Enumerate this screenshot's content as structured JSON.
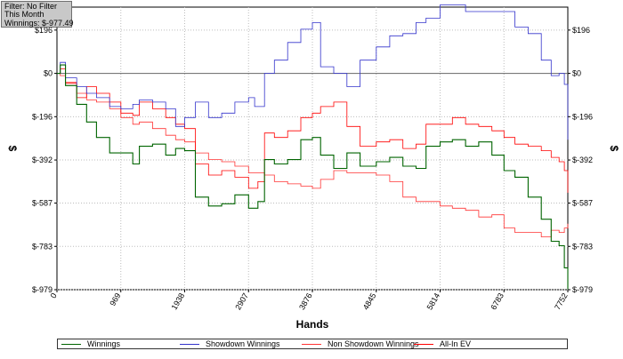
{
  "info_box": {
    "filter": "Filter: No Filter",
    "period": "This Month",
    "winnings": "Winnings: $-977.49"
  },
  "chart_data": {
    "type": "line",
    "xlabel": "Hands",
    "ylabel": "$",
    "xlim": [
      0,
      7752
    ],
    "ylim": [
      -979,
      300
    ],
    "x_ticks": [
      "0",
      "969",
      "1938",
      "2907",
      "3876",
      "4845",
      "5814",
      "6783",
      "7752"
    ],
    "y_ticks": [
      "$196",
      "$0",
      "$-196",
      "$-392",
      "$-587",
      "$-783",
      "$-979"
    ],
    "grid": true,
    "legend_position": "bottom",
    "series": [
      {
        "name": "Winnings",
        "color": "#006400",
        "points": [
          [
            0,
            0
          ],
          [
            50,
            38
          ],
          [
            130,
            -55
          ],
          [
            300,
            -140
          ],
          [
            450,
            -220
          ],
          [
            600,
            -290
          ],
          [
            800,
            -360
          ],
          [
            969,
            -360
          ],
          [
            1150,
            -410
          ],
          [
            1250,
            -330
          ],
          [
            1450,
            -320
          ],
          [
            1650,
            -370
          ],
          [
            1800,
            -340
          ],
          [
            1938,
            -350
          ],
          [
            2100,
            -560
          ],
          [
            2300,
            -600
          ],
          [
            2500,
            -590
          ],
          [
            2700,
            -550
          ],
          [
            2907,
            -610
          ],
          [
            3050,
            -580
          ],
          [
            3150,
            -390
          ],
          [
            3300,
            -410
          ],
          [
            3500,
            -390
          ],
          [
            3700,
            -300
          ],
          [
            3876,
            -290
          ],
          [
            4000,
            -370
          ],
          [
            4200,
            -430
          ],
          [
            4400,
            -360
          ],
          [
            4600,
            -420
          ],
          [
            4845,
            -400
          ],
          [
            5050,
            -380
          ],
          [
            5250,
            -420
          ],
          [
            5450,
            -430
          ],
          [
            5600,
            -330
          ],
          [
            5814,
            -310
          ],
          [
            6000,
            -300
          ],
          [
            6200,
            -330
          ],
          [
            6400,
            -310
          ],
          [
            6600,
            -370
          ],
          [
            6783,
            -440
          ],
          [
            6950,
            -470
          ],
          [
            7150,
            -560
          ],
          [
            7350,
            -660
          ],
          [
            7500,
            -760
          ],
          [
            7620,
            -780
          ],
          [
            7700,
            -880
          ],
          [
            7752,
            -977
          ]
        ]
      },
      {
        "name": "Showdown Winnings",
        "color": "#3333cc",
        "points": [
          [
            0,
            0
          ],
          [
            50,
            50
          ],
          [
            130,
            -20
          ],
          [
            300,
            -60
          ],
          [
            450,
            -90
          ],
          [
            600,
            -110
          ],
          [
            800,
            -150
          ],
          [
            969,
            -160
          ],
          [
            1150,
            -140
          ],
          [
            1250,
            -120
          ],
          [
            1450,
            -130
          ],
          [
            1650,
            -160
          ],
          [
            1800,
            -240
          ],
          [
            1938,
            -200
          ],
          [
            2100,
            -130
          ],
          [
            2300,
            -200
          ],
          [
            2500,
            -180
          ],
          [
            2700,
            -130
          ],
          [
            2907,
            -110
          ],
          [
            3000,
            -150
          ],
          [
            3150,
            0
          ],
          [
            3300,
            60
          ],
          [
            3500,
            140
          ],
          [
            3700,
            200
          ],
          [
            3876,
            230
          ],
          [
            4000,
            30
          ],
          [
            4200,
            0
          ],
          [
            4400,
            -60
          ],
          [
            4600,
            60
          ],
          [
            4845,
            120
          ],
          [
            5050,
            170
          ],
          [
            5250,
            180
          ],
          [
            5450,
            230
          ],
          [
            5600,
            250
          ],
          [
            5814,
            310
          ],
          [
            6000,
            310
          ],
          [
            6200,
            280
          ],
          [
            6400,
            280
          ],
          [
            6600,
            280
          ],
          [
            6783,
            280
          ],
          [
            6950,
            210
          ],
          [
            7150,
            180
          ],
          [
            7350,
            60
          ],
          [
            7500,
            -10
          ],
          [
            7620,
            0
          ],
          [
            7700,
            -50
          ],
          [
            7752,
            -300
          ]
        ]
      },
      {
        "name": "Non Showdown Winnings",
        "color": "#ff3333",
        "points": [
          [
            0,
            0
          ],
          [
            50,
            -10
          ],
          [
            130,
            -40
          ],
          [
            300,
            -90
          ],
          [
            450,
            -120
          ],
          [
            600,
            -130
          ],
          [
            800,
            -160
          ],
          [
            969,
            -200
          ],
          [
            1150,
            -230
          ],
          [
            1250,
            -220
          ],
          [
            1450,
            -250
          ],
          [
            1650,
            -280
          ],
          [
            1800,
            -300
          ],
          [
            1938,
            -310
          ],
          [
            2100,
            -360
          ],
          [
            2300,
            -390
          ],
          [
            2500,
            -400
          ],
          [
            2700,
            -420
          ],
          [
            2907,
            -450
          ],
          [
            3050,
            -450
          ],
          [
            3150,
            -460
          ],
          [
            3300,
            -490
          ],
          [
            3500,
            -500
          ],
          [
            3700,
            -510
          ],
          [
            3876,
            -520
          ],
          [
            4000,
            -480
          ],
          [
            4200,
            -440
          ],
          [
            4400,
            -450
          ],
          [
            4600,
            -450
          ],
          [
            4845,
            -460
          ],
          [
            5050,
            -490
          ],
          [
            5250,
            -560
          ],
          [
            5450,
            -580
          ],
          [
            5600,
            -580
          ],
          [
            5814,
            -600
          ],
          [
            6000,
            -610
          ],
          [
            6200,
            -620
          ],
          [
            6400,
            -650
          ],
          [
            6600,
            -640
          ],
          [
            6783,
            -700
          ],
          [
            6950,
            -720
          ],
          [
            7150,
            -720
          ],
          [
            7350,
            -740
          ],
          [
            7500,
            -710
          ],
          [
            7620,
            -720
          ],
          [
            7700,
            -700
          ],
          [
            7752,
            -680
          ]
        ]
      },
      {
        "name": "All-In EV",
        "color": "#ff0000",
        "points": [
          [
            0,
            0
          ],
          [
            50,
            20
          ],
          [
            130,
            -45
          ],
          [
            300,
            -110
          ],
          [
            450,
            -60
          ],
          [
            600,
            -90
          ],
          [
            800,
            -130
          ],
          [
            969,
            -180
          ],
          [
            1150,
            -190
          ],
          [
            1250,
            -130
          ],
          [
            1450,
            -160
          ],
          [
            1650,
            -200
          ],
          [
            1800,
            -230
          ],
          [
            1938,
            -250
          ],
          [
            2100,
            -410
          ],
          [
            2300,
            -460
          ],
          [
            2500,
            -440
          ],
          [
            2700,
            -470
          ],
          [
            2907,
            -520
          ],
          [
            3050,
            -490
          ],
          [
            3150,
            -270
          ],
          [
            3300,
            -290
          ],
          [
            3500,
            -260
          ],
          [
            3700,
            -200
          ],
          [
            3876,
            -180
          ],
          [
            4000,
            -150
          ],
          [
            4200,
            -130
          ],
          [
            4400,
            -240
          ],
          [
            4600,
            -330
          ],
          [
            4845,
            -310
          ],
          [
            5050,
            -300
          ],
          [
            5250,
            -340
          ],
          [
            5450,
            -320
          ],
          [
            5600,
            -230
          ],
          [
            5814,
            -230
          ],
          [
            6000,
            -200
          ],
          [
            6200,
            -230
          ],
          [
            6400,
            -240
          ],
          [
            6600,
            -260
          ],
          [
            6783,
            -290
          ],
          [
            6950,
            -320
          ],
          [
            7150,
            -330
          ],
          [
            7350,
            -350
          ],
          [
            7500,
            -380
          ],
          [
            7620,
            -400
          ],
          [
            7700,
            -440
          ],
          [
            7752,
            -540
          ]
        ]
      }
    ]
  }
}
